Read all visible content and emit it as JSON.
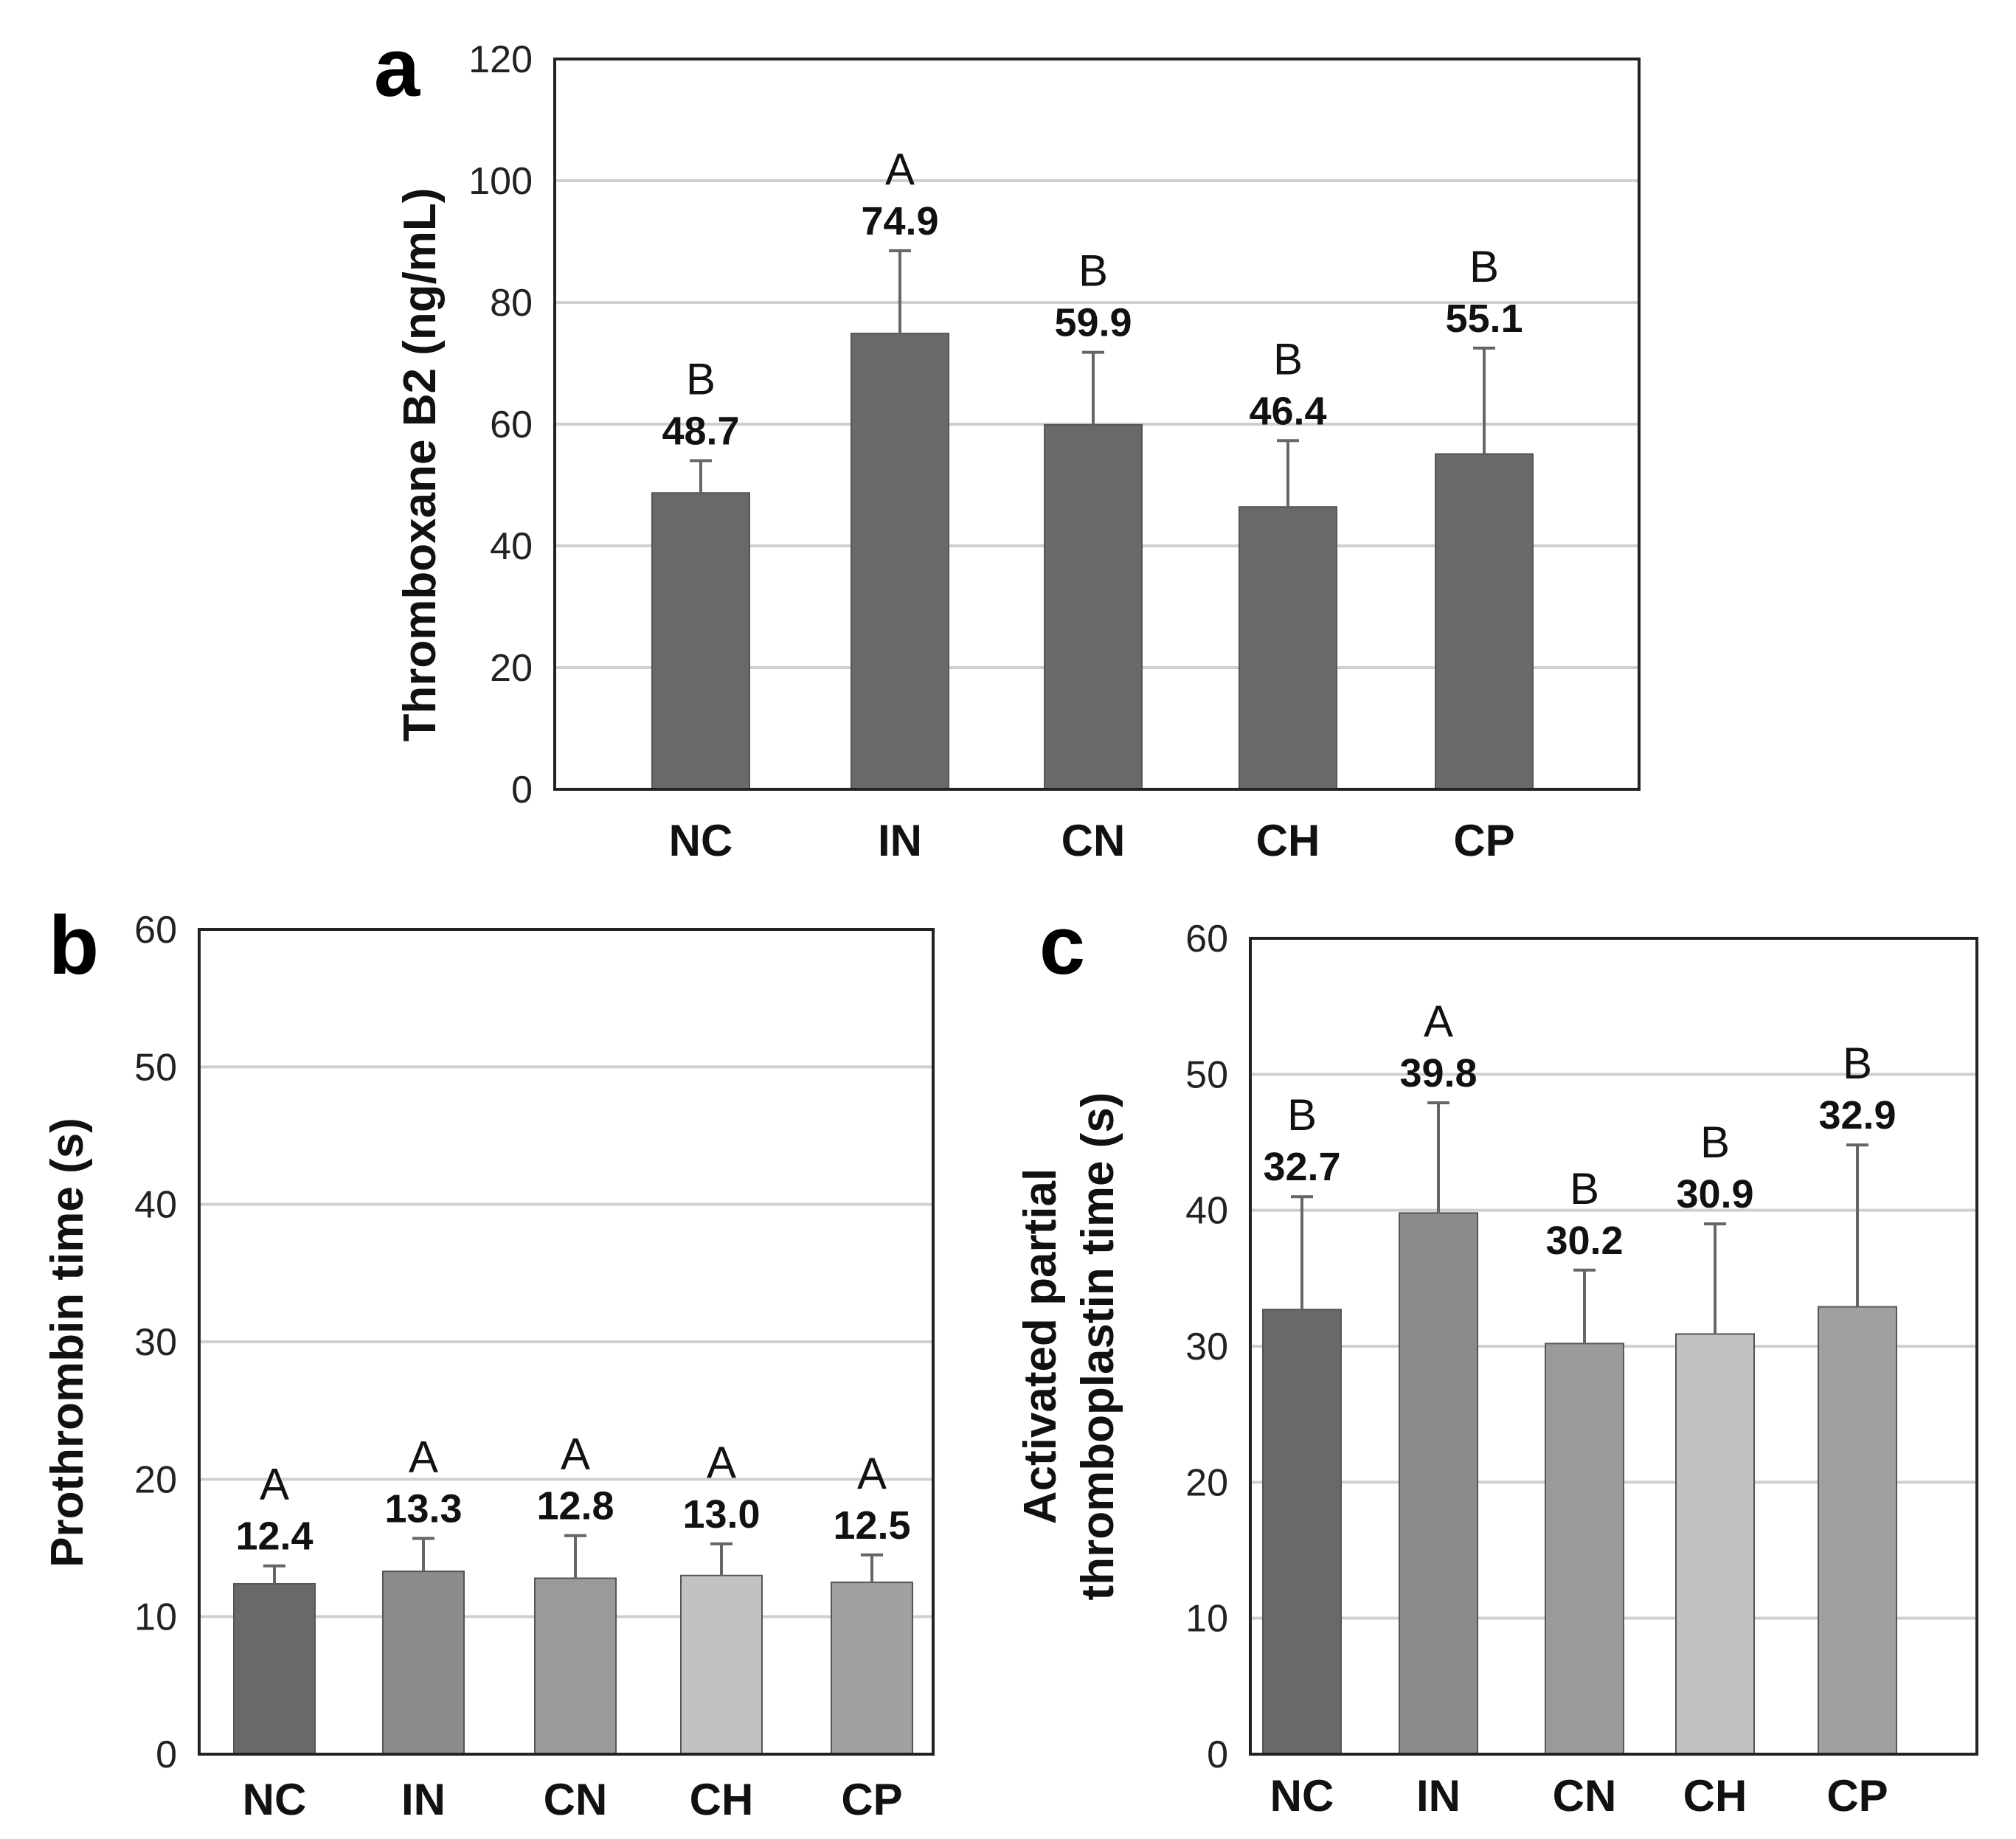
{
  "chart_data": [
    {
      "panel": "a",
      "type": "bar",
      "ylabel": "Thromboxane B2 (ng/mL)",
      "categories": [
        "NC",
        "IN",
        "CN",
        "CH",
        "CP"
      ],
      "values": [
        48.7,
        74.9,
        59.9,
        46.4,
        55.1
      ],
      "errors": [
        5.3,
        13.6,
        11.9,
        10.9,
        17.4
      ],
      "value_labels": [
        "48.7",
        "74.9",
        "59.9",
        "46.4",
        "55.1"
      ],
      "significance": [
        "B",
        "A",
        "B",
        "B",
        "B"
      ],
      "ylim": [
        0,
        120
      ],
      "yticks": [
        0,
        20,
        40,
        60,
        80,
        100,
        120
      ],
      "grid": true,
      "colors": [
        "#696969",
        "#696969",
        "#696969",
        "#696969",
        "#696969"
      ]
    },
    {
      "panel": "b",
      "type": "bar",
      "ylabel": "Prothrombin time (s)",
      "categories": [
        "NC",
        "IN",
        "CN",
        "CH",
        "CP"
      ],
      "values": [
        12.4,
        13.3,
        12.8,
        13.0,
        12.5
      ],
      "errors": [
        1.3,
        2.4,
        3.1,
        2.3,
        2.0
      ],
      "value_labels": [
        "12.4",
        "13.3",
        "12.8",
        "13.0",
        "12.5"
      ],
      "significance": [
        "A",
        "A",
        "A",
        "A",
        "A"
      ],
      "ylim": [
        0,
        60
      ],
      "yticks": [
        0,
        10,
        20,
        30,
        40,
        50,
        60
      ],
      "grid": true,
      "colors": [
        "#696969",
        "#8c8c8c",
        "#9a9a9a",
        "#c2c2c2",
        "#a0a0a0"
      ]
    },
    {
      "panel": "c",
      "type": "bar",
      "ylabel_lines": [
        "Activated partial",
        "thromboplastin time (s)"
      ],
      "categories": [
        "NC",
        "IN",
        "CN",
        "CH",
        "CP"
      ],
      "values": [
        32.7,
        39.8,
        30.2,
        30.9,
        32.9
      ],
      "errors": [
        8.3,
        8.1,
        5.4,
        8.1,
        11.9
      ],
      "value_labels": [
        "32.7",
        "39.8",
        "30.2",
        "30.9",
        "32.9"
      ],
      "significance": [
        "B",
        "A",
        "B",
        "B",
        "B"
      ],
      "ylim": [
        0,
        60
      ],
      "yticks": [
        0,
        10,
        20,
        30,
        40,
        50,
        60
      ],
      "grid": true,
      "colors": [
        "#696969",
        "#8c8c8c",
        "#9a9a9a",
        "#c2c2c2",
        "#a0a0a0"
      ]
    }
  ]
}
